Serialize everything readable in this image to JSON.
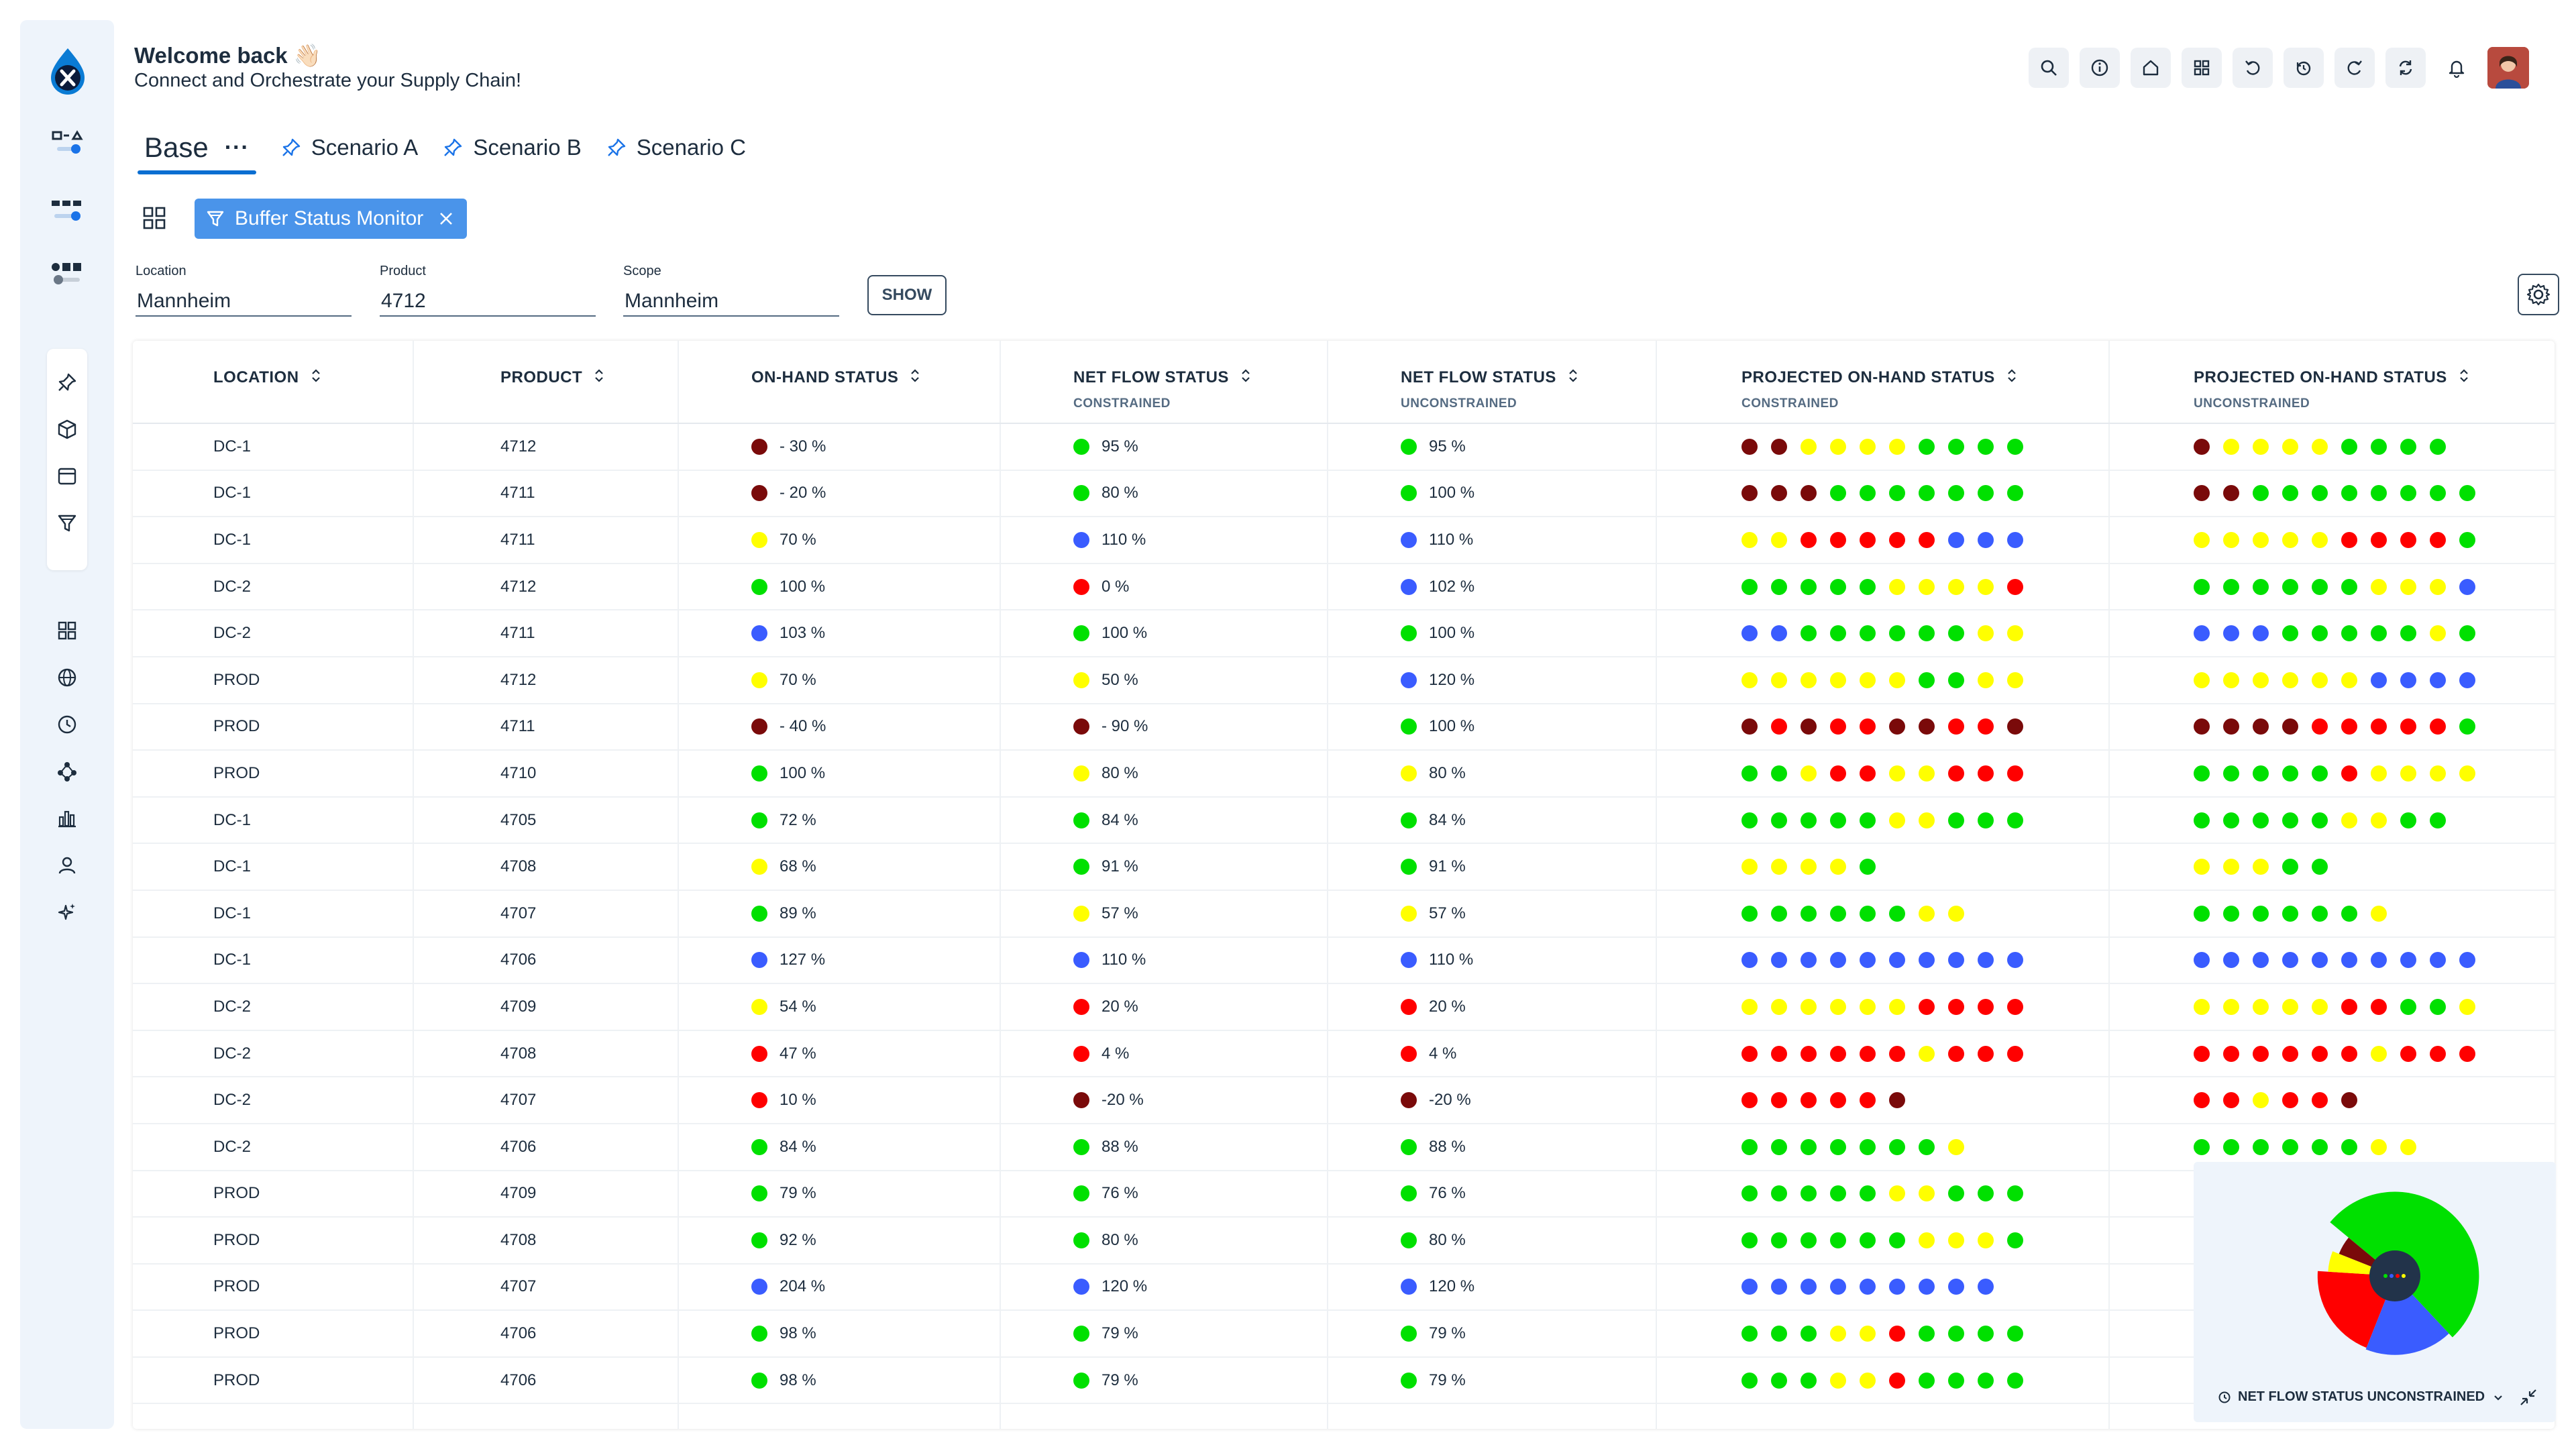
{
  "header": {
    "welcome": "Welcome back 👋🏻",
    "subtitle": "Connect and Orchestrate your Supply Chain!"
  },
  "toolbar": {
    "icons": [
      "search-icon",
      "info-icon",
      "home-icon",
      "apps-icon",
      "undo-icon",
      "history-icon",
      "redo-icon",
      "sync-icon",
      "bell-icon",
      "user-avatar"
    ]
  },
  "tabs": {
    "base": "Base",
    "base_menu": "···",
    "items": [
      "Scenario A",
      "Scenario B",
      "Scenario C"
    ]
  },
  "filter_chip": {
    "label": "Buffer Status Monitor"
  },
  "filters": {
    "location": {
      "label": "Location",
      "value": "Mannheim"
    },
    "product": {
      "label": "Product",
      "value": "4712"
    },
    "scope": {
      "label": "Scope",
      "value": "Mannheim"
    },
    "show": "SHOW"
  },
  "colors": {
    "darkred": "#7a0a0a",
    "red": "#ff0000",
    "yellow": "#ffff00",
    "green": "#00e000",
    "blue": "#3a5cff",
    "accent": "#0a6ed1",
    "chip": "#4a94ea"
  },
  "table": {
    "columns": [
      {
        "label": "LOCATION",
        "sub": ""
      },
      {
        "label": "PRODUCT",
        "sub": ""
      },
      {
        "label": "ON-HAND STATUS",
        "sub": ""
      },
      {
        "label": "NET FLOW STATUS",
        "sub": "CONSTRAINED"
      },
      {
        "label": "NET FLOW STATUS",
        "sub": "UNCONSTRAINED"
      },
      {
        "label": "PROJECTED ON-HAND STATUS",
        "sub": "CONSTRAINED"
      },
      {
        "label": "PROJECTED ON-HAND STATUS",
        "sub": "UNCONSTRAINED"
      }
    ],
    "rows": [
      {
        "location": "DC-1",
        "product": "4712",
        "onhand": [
          "darkred",
          "- 30 %"
        ],
        "nfc": [
          "green",
          "95 %"
        ],
        "nfu": [
          "green",
          "95 %"
        ],
        "poc": "DDYYYYGGGG",
        "pou": "DYYYYGGGG"
      },
      {
        "location": "DC-1",
        "product": "4711",
        "onhand": [
          "darkred",
          "- 20 %"
        ],
        "nfc": [
          "green",
          "80 %"
        ],
        "nfu": [
          "green",
          "100 %"
        ],
        "poc": "DDDGGGGGGG",
        "pou": "DDGGGGGGGG"
      },
      {
        "location": "DC-1",
        "product": "4711",
        "onhand": [
          "yellow",
          "70 %"
        ],
        "nfc": [
          "blue",
          "110 %"
        ],
        "nfu": [
          "blue",
          "110 %"
        ],
        "poc": "YYRRRRRBBB",
        "pou": "YYYYYRRRRG"
      },
      {
        "location": "DC-2",
        "product": "4712",
        "onhand": [
          "green",
          "100 %"
        ],
        "nfc": [
          "red",
          "0 %"
        ],
        "nfu": [
          "blue",
          "102 %"
        ],
        "poc": "GGGGGYYYYR",
        "pou": "GGGGGGYYYB"
      },
      {
        "location": "DC-2",
        "product": "4711",
        "onhand": [
          "blue",
          "103 %"
        ],
        "nfc": [
          "green",
          "100 %"
        ],
        "nfu": [
          "green",
          "100 %"
        ],
        "poc": "BBGGGGGGYY",
        "pou": "BBBGGGGGYG"
      },
      {
        "location": "PROD",
        "product": "4712",
        "onhand": [
          "yellow",
          "70 %"
        ],
        "nfc": [
          "yellow",
          "50 %"
        ],
        "nfu": [
          "blue",
          "120 %"
        ],
        "poc": "YYYYYYGGYY",
        "pou": "YYYYYYBBBB"
      },
      {
        "location": "PROD",
        "product": "4711",
        "onhand": [
          "darkred",
          "- 40 %"
        ],
        "nfc": [
          "darkred",
          "- 90 %"
        ],
        "nfu": [
          "green",
          "100 %"
        ],
        "poc": "DRDRRDDRRD",
        "pou": "DDDDRRRRRG"
      },
      {
        "location": "PROD",
        "product": "4710",
        "onhand": [
          "green",
          "100 %"
        ],
        "nfc": [
          "yellow",
          "80 %"
        ],
        "nfu": [
          "yellow",
          "80 %"
        ],
        "poc": "GGYRRYYRRR",
        "pou": "GGGGGRYYYY"
      },
      {
        "location": "DC-1",
        "product": "4705",
        "onhand": [
          "green",
          "72 %"
        ],
        "nfc": [
          "green",
          "84 %"
        ],
        "nfu": [
          "green",
          "84 %"
        ],
        "poc": "GGGGGYYGGG",
        "pou": "GGGGGYYGG"
      },
      {
        "location": "DC-1",
        "product": "4708",
        "onhand": [
          "yellow",
          "68 %"
        ],
        "nfc": [
          "green",
          "91 %"
        ],
        "nfu": [
          "green",
          "91 %"
        ],
        "poc": "YYYYG",
        "pou": "YYYGG"
      },
      {
        "location": "DC-1",
        "product": "4707",
        "onhand": [
          "green",
          "89 %"
        ],
        "nfc": [
          "yellow",
          "57 %"
        ],
        "nfu": [
          "yellow",
          "57 %"
        ],
        "poc": "GGGGGGYY",
        "pou": "GGGGGGY"
      },
      {
        "location": "DC-1",
        "product": "4706",
        "onhand": [
          "blue",
          "127 %"
        ],
        "nfc": [
          "blue",
          "110 %"
        ],
        "nfu": [
          "blue",
          "110 %"
        ],
        "poc": "BBBBBBBBBB",
        "pou": "BBBBBBBBBB"
      },
      {
        "location": "DC-2",
        "product": "4709",
        "onhand": [
          "yellow",
          "54 %"
        ],
        "nfc": [
          "red",
          "20 %"
        ],
        "nfu": [
          "red",
          "20 %"
        ],
        "poc": "YYYYYYRRRR",
        "pou": "YYYYYRRGGY"
      },
      {
        "location": "DC-2",
        "product": "4708",
        "onhand": [
          "red",
          "47 %"
        ],
        "nfc": [
          "red",
          "4 %"
        ],
        "nfu": [
          "red",
          "4 %"
        ],
        "poc": "RRRRRRYRRR",
        "pou": "RRRRRRYRRR"
      },
      {
        "location": "DC-2",
        "product": "4707",
        "onhand": [
          "red",
          "10 %"
        ],
        "nfc": [
          "darkred",
          "-20 %"
        ],
        "nfu": [
          "darkred",
          "-20 %"
        ],
        "poc": "RRRRRD",
        "pou": "RRYRRD"
      },
      {
        "location": "DC-2",
        "product": "4706",
        "onhand": [
          "green",
          "84 %"
        ],
        "nfc": [
          "green",
          "88 %"
        ],
        "nfu": [
          "green",
          "88 %"
        ],
        "poc": "GGGGGGGY",
        "pou": "GGGGGGYY"
      },
      {
        "location": "PROD",
        "product": "4709",
        "onhand": [
          "green",
          "79 %"
        ],
        "nfc": [
          "green",
          "76 %"
        ],
        "nfu": [
          "green",
          "76 %"
        ],
        "poc": "GGGGGYYGGG",
        "pou": ""
      },
      {
        "location": "PROD",
        "product": "4708",
        "onhand": [
          "green",
          "92 %"
        ],
        "nfc": [
          "green",
          "80 %"
        ],
        "nfu": [
          "green",
          "80 %"
        ],
        "poc": "GGGGGGYYYG",
        "pou": ""
      },
      {
        "location": "PROD",
        "product": "4707",
        "onhand": [
          "blue",
          "204 %"
        ],
        "nfc": [
          "blue",
          "120 %"
        ],
        "nfu": [
          "blue",
          "120 %"
        ],
        "poc": "BBBBBBBBB",
        "pou": ""
      },
      {
        "location": "PROD",
        "product": "4706",
        "onhand": [
          "green",
          "98 %"
        ],
        "nfc": [
          "green",
          "79 %"
        ],
        "nfu": [
          "green",
          "79 %"
        ],
        "poc": "GGGYYRGGGG",
        "pou": ""
      },
      {
        "location": "PROD",
        "product": "4706",
        "onhand": [
          "green",
          "98 %"
        ],
        "nfc": [
          "green",
          "79 %"
        ],
        "nfu": [
          "green",
          "79 %"
        ],
        "poc": "GGGYYRGGGG",
        "pou": ""
      }
    ]
  },
  "donut": {
    "caption": "NET FLOW STATUS UNCONSTRAINED",
    "segments": [
      {
        "color": "#00e000",
        "value": 52
      },
      {
        "color": "#3a5cff",
        "value": 18
      },
      {
        "color": "#ff0000",
        "value": 20
      },
      {
        "color": "#ffff00",
        "value": 5
      },
      {
        "color": "#7a0a0a",
        "value": 5
      }
    ]
  }
}
